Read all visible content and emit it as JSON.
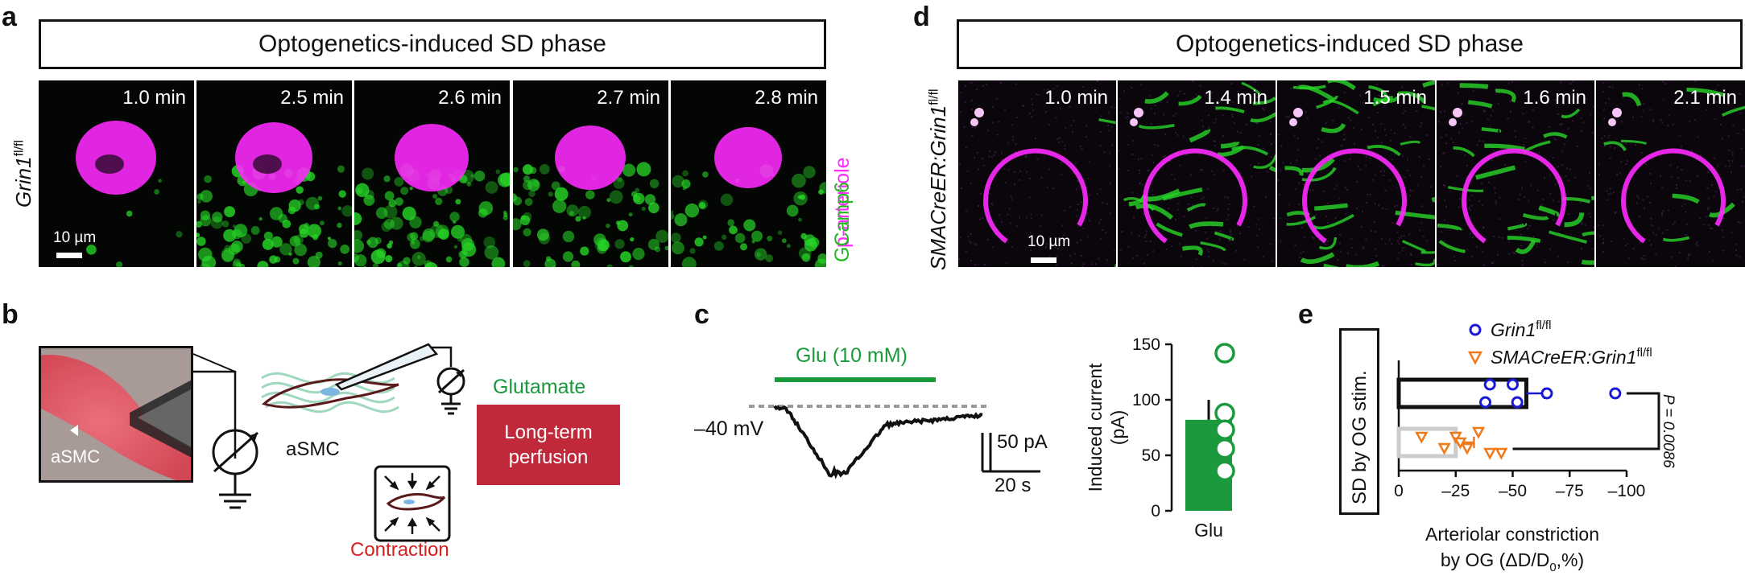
{
  "panel_a": {
    "letter": "a",
    "banner": "Optogenetics-induced SD phase",
    "genotype_main": "Grin1",
    "genotype_sup": "fl/fl",
    "frames": [
      "1.0 min",
      "2.5 min",
      "2.6 min",
      "2.7 min",
      "2.8 min"
    ],
    "scale_label": "10 µm",
    "channel_labels": {
      "parteriole": "p-arteriole",
      "gcamp": "GCamp6"
    },
    "colors": {
      "magenta": "#ff2bff",
      "green": "#24e024"
    }
  },
  "panel_d": {
    "letter": "d",
    "banner": "Optogenetics-induced SD phase",
    "genotype_main": "SMACreER:Grin1",
    "genotype_sup": "fl/fl",
    "frames": [
      "1.0 min",
      "1.4 min",
      "1.5 min",
      "1.6 min",
      "2.1 min"
    ],
    "scale_label": "10 µm"
  },
  "panel_b": {
    "letter": "b",
    "cell_label": "aSMC",
    "cell_label_2": "aSMC",
    "glutamate": "Glutamate",
    "perfusion": "Long-term perfusion",
    "contraction": "Contraction",
    "colors": {
      "glutamate": "#1a9a3c",
      "perfusion_box": "#c0293a",
      "contraction": "#d42020"
    }
  },
  "panel_c": {
    "letter": "c",
    "stim_label": "Glu (10 mM)",
    "holding": "–40 mV",
    "scale_y": "50 pA",
    "scale_x": "20 s",
    "chart_data": {
      "type": "bar",
      "categories": [
        "Glu"
      ],
      "values": [
        82
      ],
      "error": 18,
      "points": [
        142,
        88,
        73,
        56,
        36
      ],
      "ylabel": "Induced current (pA)",
      "ylim": [
        0,
        150
      ],
      "yticks": [
        "150",
        "100",
        "50",
        "0"
      ],
      "bar_color": "#1a9a3c"
    }
  },
  "panel_e": {
    "letter": "e",
    "side_label": "SD by OG stim.",
    "p_value": "P = 0.0086",
    "xlabel_line1": "Arteriolar constriction",
    "xlabel_line2": "by OG (ΔD/D",
    "xlabel_sub": "0",
    "xlabel_end": ",%)",
    "chart_data": {
      "type": "bar",
      "orientation": "horizontal",
      "xlim": [
        0,
        -100
      ],
      "xticks": [
        "0",
        "–25",
        "–50",
        "–75",
        "–100"
      ],
      "series": [
        {
          "name": "Grin1 fl/fl",
          "value": -56,
          "error": 8,
          "points": [
            -40,
            -50,
            -38,
            -52,
            -65,
            -95
          ],
          "color": "#1a1ad6"
        },
        {
          "name": "SMACreER:Grin1 fl/fl",
          "value": -25,
          "error": 8,
          "points": [
            -10,
            -20,
            -25,
            -30,
            -35,
            -40,
            -45,
            -27
          ],
          "color": "#f07a1a"
        }
      ],
      "legend": [
        {
          "main": "Grin1",
          "sup": "fl/fl"
        },
        {
          "main": "SMACreER:Grin1",
          "sup": "fl/fl"
        }
      ]
    }
  }
}
